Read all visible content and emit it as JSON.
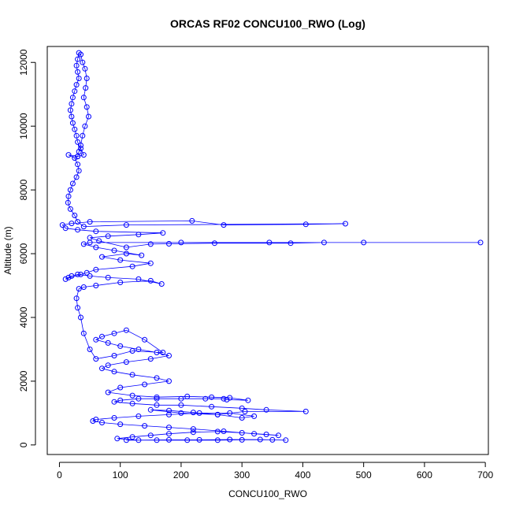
{
  "chart_data": {
    "type": "scatter",
    "title": "ORCAS RF02 CONCU100_RWO (Log)",
    "xlabel": "CONCU100_RWO",
    "ylabel": "Altitude (m)",
    "xlim": [
      -20,
      705
    ],
    "ylim": [
      -300,
      12500
    ],
    "xticks": [
      0,
      100,
      200,
      300,
      400,
      500,
      600,
      700
    ],
    "yticks": [
      0,
      2000,
      4000,
      6000,
      8000,
      10000,
      12000
    ],
    "grid": false,
    "legend": "none",
    "marker": "open-circle",
    "connected_by_lines": true,
    "color": "#0000ff",
    "series": [
      {
        "points": [
          [
            110,
            150
          ],
          [
            160,
            150
          ],
          [
            210,
            150
          ],
          [
            260,
            150
          ],
          [
            300,
            160
          ],
          [
            350,
            160
          ],
          [
            372,
            150
          ],
          [
            330,
            170
          ],
          [
            280,
            170
          ],
          [
            230,
            160
          ],
          [
            180,
            160
          ],
          [
            130,
            150
          ],
          [
            95,
            200
          ],
          [
            120,
            250
          ],
          [
            150,
            300
          ],
          [
            180,
            350
          ],
          [
            220,
            400
          ],
          [
            260,
            420
          ],
          [
            300,
            380
          ],
          [
            340,
            330
          ],
          [
            360,
            300
          ],
          [
            320,
            350
          ],
          [
            270,
            430
          ],
          [
            220,
            500
          ],
          [
            180,
            550
          ],
          [
            140,
            600
          ],
          [
            100,
            650
          ],
          [
            70,
            700
          ],
          [
            55,
            750
          ],
          [
            60,
            800
          ],
          [
            90,
            850
          ],
          [
            130,
            900
          ],
          [
            180,
            950
          ],
          [
            230,
            1000
          ],
          [
            280,
            1000
          ],
          [
            320,
            900
          ],
          [
            300,
            850
          ],
          [
            260,
            950
          ],
          [
            220,
            1020
          ],
          [
            180,
            1080
          ],
          [
            150,
            1100
          ],
          [
            200,
            1000
          ],
          [
            260,
            950
          ],
          [
            305,
            1050
          ],
          [
            405,
            1050
          ],
          [
            340,
            1100
          ],
          [
            300,
            1150
          ],
          [
            250,
            1200
          ],
          [
            200,
            1250
          ],
          [
            160,
            1250
          ],
          [
            120,
            1300
          ],
          [
            90,
            1350
          ],
          [
            100,
            1400
          ],
          [
            130,
            1450
          ],
          [
            160,
            1450
          ],
          [
            200,
            1450
          ],
          [
            240,
            1450
          ],
          [
            270,
            1450
          ],
          [
            275,
            1420
          ],
          [
            310,
            1400
          ],
          [
            280,
            1480
          ],
          [
            250,
            1500
          ],
          [
            210,
            1520
          ],
          [
            160,
            1500
          ],
          [
            120,
            1550
          ],
          [
            80,
            1650
          ],
          [
            100,
            1800
          ],
          [
            140,
            1900
          ],
          [
            180,
            2000
          ],
          [
            160,
            2100
          ],
          [
            120,
            2200
          ],
          [
            90,
            2300
          ],
          [
            70,
            2400
          ],
          [
            80,
            2500
          ],
          [
            110,
            2600
          ],
          [
            150,
            2700
          ],
          [
            180,
            2800
          ],
          [
            160,
            2900
          ],
          [
            130,
            3000
          ],
          [
            100,
            3100
          ],
          [
            80,
            3200
          ],
          [
            60,
            3300
          ],
          [
            70,
            3400
          ],
          [
            90,
            3500
          ],
          [
            110,
            3600
          ],
          [
            140,
            3300
          ],
          [
            170,
            2900
          ],
          [
            120,
            2950
          ],
          [
            90,
            2800
          ],
          [
            60,
            2700
          ],
          [
            50,
            3000
          ],
          [
            40,
            3500
          ],
          [
            35,
            4000
          ],
          [
            30,
            4300
          ],
          [
            28,
            4600
          ],
          [
            32,
            4900
          ],
          [
            40,
            4950
          ],
          [
            60,
            5000
          ],
          [
            100,
            5100
          ],
          [
            150,
            5150
          ],
          [
            168,
            5050
          ],
          [
            130,
            5200
          ],
          [
            80,
            5250
          ],
          [
            50,
            5300
          ],
          [
            30,
            5350
          ],
          [
            20,
            5300
          ],
          [
            15,
            5250
          ],
          [
            10,
            5200
          ],
          [
            35,
            5350
          ],
          [
            45,
            5400
          ],
          [
            60,
            5500
          ],
          [
            120,
            5600
          ],
          [
            150,
            5700
          ],
          [
            100,
            5800
          ],
          [
            70,
            5900
          ],
          [
            110,
            6000
          ],
          [
            135,
            5950
          ],
          [
            90,
            6100
          ],
          [
            60,
            6200
          ],
          [
            40,
            6300
          ],
          [
            50,
            6350
          ],
          [
            200,
            6350
          ],
          [
            345,
            6350
          ],
          [
            500,
            6350
          ],
          [
            692,
            6350
          ],
          [
            435,
            6350
          ],
          [
            380,
            6330
          ],
          [
            255,
            6330
          ],
          [
            180,
            6310
          ],
          [
            150,
            6300
          ],
          [
            110,
            6200
          ],
          [
            65,
            6400
          ],
          [
            50,
            6500
          ],
          [
            80,
            6550
          ],
          [
            130,
            6600
          ],
          [
            170,
            6650
          ],
          [
            60,
            6700
          ],
          [
            30,
            6750
          ],
          [
            10,
            6800
          ],
          [
            5,
            6900
          ],
          [
            20,
            6950
          ],
          [
            50,
            7000
          ],
          [
            218,
            7030
          ],
          [
            270,
            6900
          ],
          [
            405,
            6920
          ],
          [
            470,
            6940
          ],
          [
            110,
            6900
          ],
          [
            40,
            6850
          ],
          [
            30,
            7000
          ],
          [
            25,
            7200
          ],
          [
            18,
            7400
          ],
          [
            14,
            7600
          ],
          [
            15,
            7800
          ],
          [
            18,
            8000
          ],
          [
            22,
            8200
          ],
          [
            28,
            8400
          ],
          [
            32,
            8600
          ],
          [
            30,
            8800
          ],
          [
            25,
            9000
          ],
          [
            15,
            9100
          ],
          [
            30,
            9050
          ],
          [
            40,
            9100
          ],
          [
            35,
            9300
          ],
          [
            30,
            9500
          ],
          [
            28,
            9700
          ],
          [
            25,
            9900
          ],
          [
            22,
            10100
          ],
          [
            20,
            10300
          ],
          [
            18,
            10500
          ],
          [
            20,
            10700
          ],
          [
            22,
            10900
          ],
          [
            25,
            11100
          ],
          [
            28,
            11300
          ],
          [
            32,
            11500
          ],
          [
            30,
            11700
          ],
          [
            28,
            11900
          ],
          [
            30,
            12100
          ],
          [
            32,
            12300
          ],
          [
            35,
            12250
          ],
          [
            38,
            12000
          ],
          [
            42,
            11800
          ],
          [
            45,
            11500
          ],
          [
            43,
            11200
          ],
          [
            40,
            10900
          ],
          [
            45,
            10600
          ],
          [
            48,
            10300
          ],
          [
            42,
            10000
          ],
          [
            38,
            9700
          ],
          [
            35,
            9400
          ],
          [
            32,
            9200
          ],
          [
            30,
            9050
          ]
        ]
      }
    ]
  }
}
